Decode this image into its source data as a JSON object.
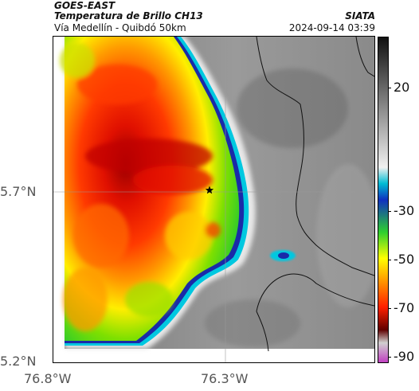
{
  "header": {
    "title": "GOES-EAST",
    "subtitle": "Temperatura de Brillo CH13",
    "route": "Vía Medellín - Quibdó 50km",
    "source": "SIATA",
    "datetime": "2024-09-14 03:39"
  },
  "map": {
    "lat_labels": [
      "5.7°N",
      "5.2°N"
    ],
    "lon_labels": [
      "76.8°W",
      "76.3°W"
    ],
    "marker_icon": "star-icon"
  },
  "colorbar": {
    "ticks": [
      "20",
      "-30",
      "-50",
      "-70",
      "-90"
    ],
    "stops": [
      "#111111",
      "#f0f0f0",
      "#00bcd4",
      "#1030c0",
      "#2ed02e",
      "#ffff00",
      "#ff8800",
      "#ff2000",
      "#600000",
      "#d0d0d0",
      "#c040c0"
    ]
  }
}
